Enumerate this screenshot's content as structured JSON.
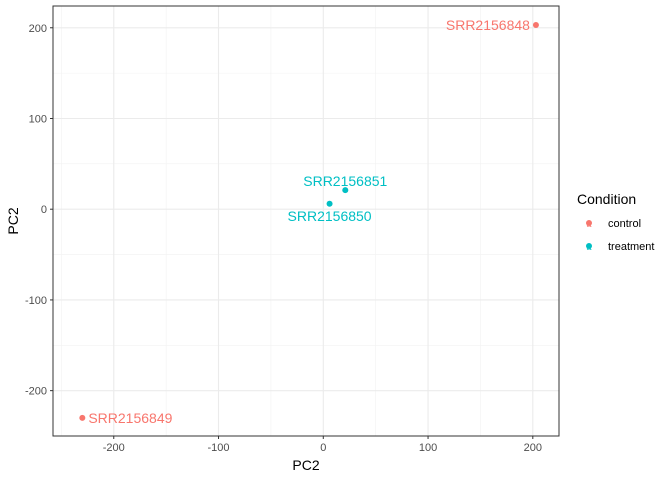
{
  "chart_data": {
    "type": "scatter",
    "title": "",
    "xlabel": "PC2",
    "ylabel": "PC2",
    "xlim": [
      -258,
      225
    ],
    "ylim": [
      -250,
      224
    ],
    "x_ticks": [
      -200,
      -100,
      0,
      100,
      200
    ],
    "y_ticks": [
      -200,
      -100,
      0,
      100,
      200
    ],
    "grid": true,
    "legend": {
      "title": "Condition",
      "placement": "right",
      "entries": [
        {
          "name": "control",
          "color": "#F8766D"
        },
        {
          "name": "treatment",
          "color": "#00BFC4"
        }
      ]
    },
    "points": [
      {
        "label": "SRR2156848",
        "x": 203,
        "y": 203,
        "group": "control",
        "label_side": "left"
      },
      {
        "label": "SRR2156849",
        "x": -230,
        "y": -230,
        "group": "control",
        "label_side": "right"
      },
      {
        "label": "SRR2156850",
        "x": 6,
        "y": 6,
        "group": "treatment",
        "label_side": "below"
      },
      {
        "label": "SRR2156851",
        "x": 21,
        "y": 21,
        "group": "treatment",
        "label_side": "above"
      }
    ]
  }
}
